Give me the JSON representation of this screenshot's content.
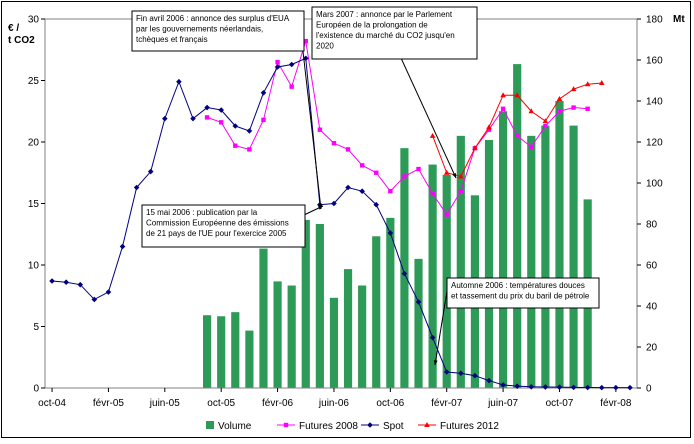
{
  "chart_data": {
    "type": "bar+line",
    "categories": [
      "oct-04",
      "nov-04",
      "déc-04",
      "janv-05",
      "févr-05",
      "mars-05",
      "avr-05",
      "mai-05",
      "juin-05",
      "juil-05",
      "août-05",
      "sept-05",
      "oct-05",
      "nov-05",
      "déc-05",
      "janv-06",
      "févr-06",
      "mars-06",
      "avr-06",
      "mai-06",
      "juin-06",
      "juil-06",
      "août-06",
      "sept-06",
      "oct-06",
      "nov-06",
      "déc-06",
      "janv-07",
      "févr-07",
      "mars-07",
      "avr-07",
      "mai-07",
      "juin-07",
      "juil-07",
      "août-07",
      "sept-07",
      "oct-07",
      "nov-07",
      "déc-07",
      "janv-08",
      "févr-08",
      "mars-08"
    ],
    "x_tick_labels": [
      "oct-04",
      "févr-05",
      "juin-05",
      "oct-05",
      "févr-06",
      "juin-06",
      "oct-06",
      "févr-07",
      "juin-07",
      "oct-07",
      "févr-08"
    ],
    "y_left": {
      "label": "€ /\nt CO2",
      "min": 0,
      "max": 30,
      "ticks": [
        0,
        5,
        10,
        15,
        20,
        25,
        30
      ]
    },
    "y_right": {
      "label": "Mt",
      "min": 0,
      "max": 180,
      "ticks": [
        0,
        20,
        40,
        60,
        80,
        100,
        120,
        140,
        160,
        180
      ]
    },
    "series": [
      {
        "name": "Volume",
        "type": "bar",
        "axis": "right",
        "color": "#2e9a58",
        "values": [
          null,
          null,
          null,
          null,
          null,
          null,
          null,
          null,
          null,
          null,
          null,
          35.5,
          35,
          37,
          28,
          68,
          52,
          50,
          82,
          80,
          44,
          58,
          50,
          74,
          83,
          117,
          63,
          109,
          104,
          123,
          94,
          121,
          135,
          158,
          123,
          128,
          140,
          128,
          92,
          null,
          null,
          null
        ]
      },
      {
        "name": "Futures 2008",
        "type": "line",
        "axis": "left",
        "color": "#ff00ff",
        "marker": "square",
        "values": [
          null,
          null,
          null,
          null,
          null,
          null,
          null,
          null,
          null,
          null,
          null,
          22.0,
          21.6,
          19.7,
          19.4,
          21.8,
          26.5,
          24.5,
          28.2,
          21.0,
          19.9,
          19.4,
          18.1,
          17.5,
          16.0,
          17.2,
          17.8,
          15.8,
          14.1,
          16.0,
          19.5,
          21.0,
          22.7,
          20.5,
          19.6,
          21.3,
          22.5,
          22.8,
          22.7,
          null,
          null,
          null
        ]
      },
      {
        "name": "Spot",
        "type": "line",
        "axis": "left",
        "color": "#000080",
        "marker": "diamond",
        "values": [
          8.7,
          8.6,
          8.4,
          7.2,
          7.8,
          11.5,
          16.3,
          17.6,
          21.9,
          24.9,
          21.9,
          22.8,
          22.6,
          21.3,
          20.9,
          24.0,
          26.1,
          26.3,
          26.8,
          14.9,
          15.0,
          16.3,
          16.0,
          14.9,
          12.6,
          9.3,
          7.0,
          4.1,
          1.3,
          1.2,
          1.0,
          0.6,
          0.25,
          0.15,
          0.1,
          0.08,
          0.07,
          0.05,
          0.04,
          0.03,
          0.03,
          0.03
        ]
      },
      {
        "name": "Futures 2012",
        "type": "line",
        "axis": "left",
        "color": "#ff0000",
        "marker": "triangle",
        "values": [
          null,
          null,
          null,
          null,
          null,
          null,
          null,
          null,
          null,
          null,
          null,
          null,
          null,
          null,
          null,
          null,
          null,
          null,
          null,
          null,
          null,
          null,
          null,
          null,
          null,
          null,
          null,
          20.5,
          17.5,
          17.2,
          19.5,
          21.2,
          23.8,
          23.8,
          22.5,
          21.7,
          23.5,
          24.3,
          24.7,
          24.8,
          null,
          null
        ]
      }
    ],
    "legend_position": "bottom",
    "annotations": [
      {
        "name": "annot-fin-avril-2006",
        "text": [
          "Fin avril 2006 : annonce des surplus d'EUA",
          "par les gouvernements néerlandais,",
          "tchèques et français"
        ]
      },
      {
        "name": "annot-mars-2007",
        "text": [
          "Mars 2007 : annonce par le Parlement",
          "Européen de la prolongation de",
          "l'existence du marché du CO2 jusqu'en",
          "2020"
        ]
      },
      {
        "name": "annot-15-mai-2006",
        "text": [
          "15 mai 2006 : publication par la",
          "Commission Européenne des émissions",
          "de 21 pays de l'UE pour l'exercice 2005"
        ]
      },
      {
        "name": "annot-automne-2006",
        "text": [
          "Automne 2006 : températures douces",
          "et tassement du prix du baril de pétrole"
        ]
      }
    ]
  }
}
